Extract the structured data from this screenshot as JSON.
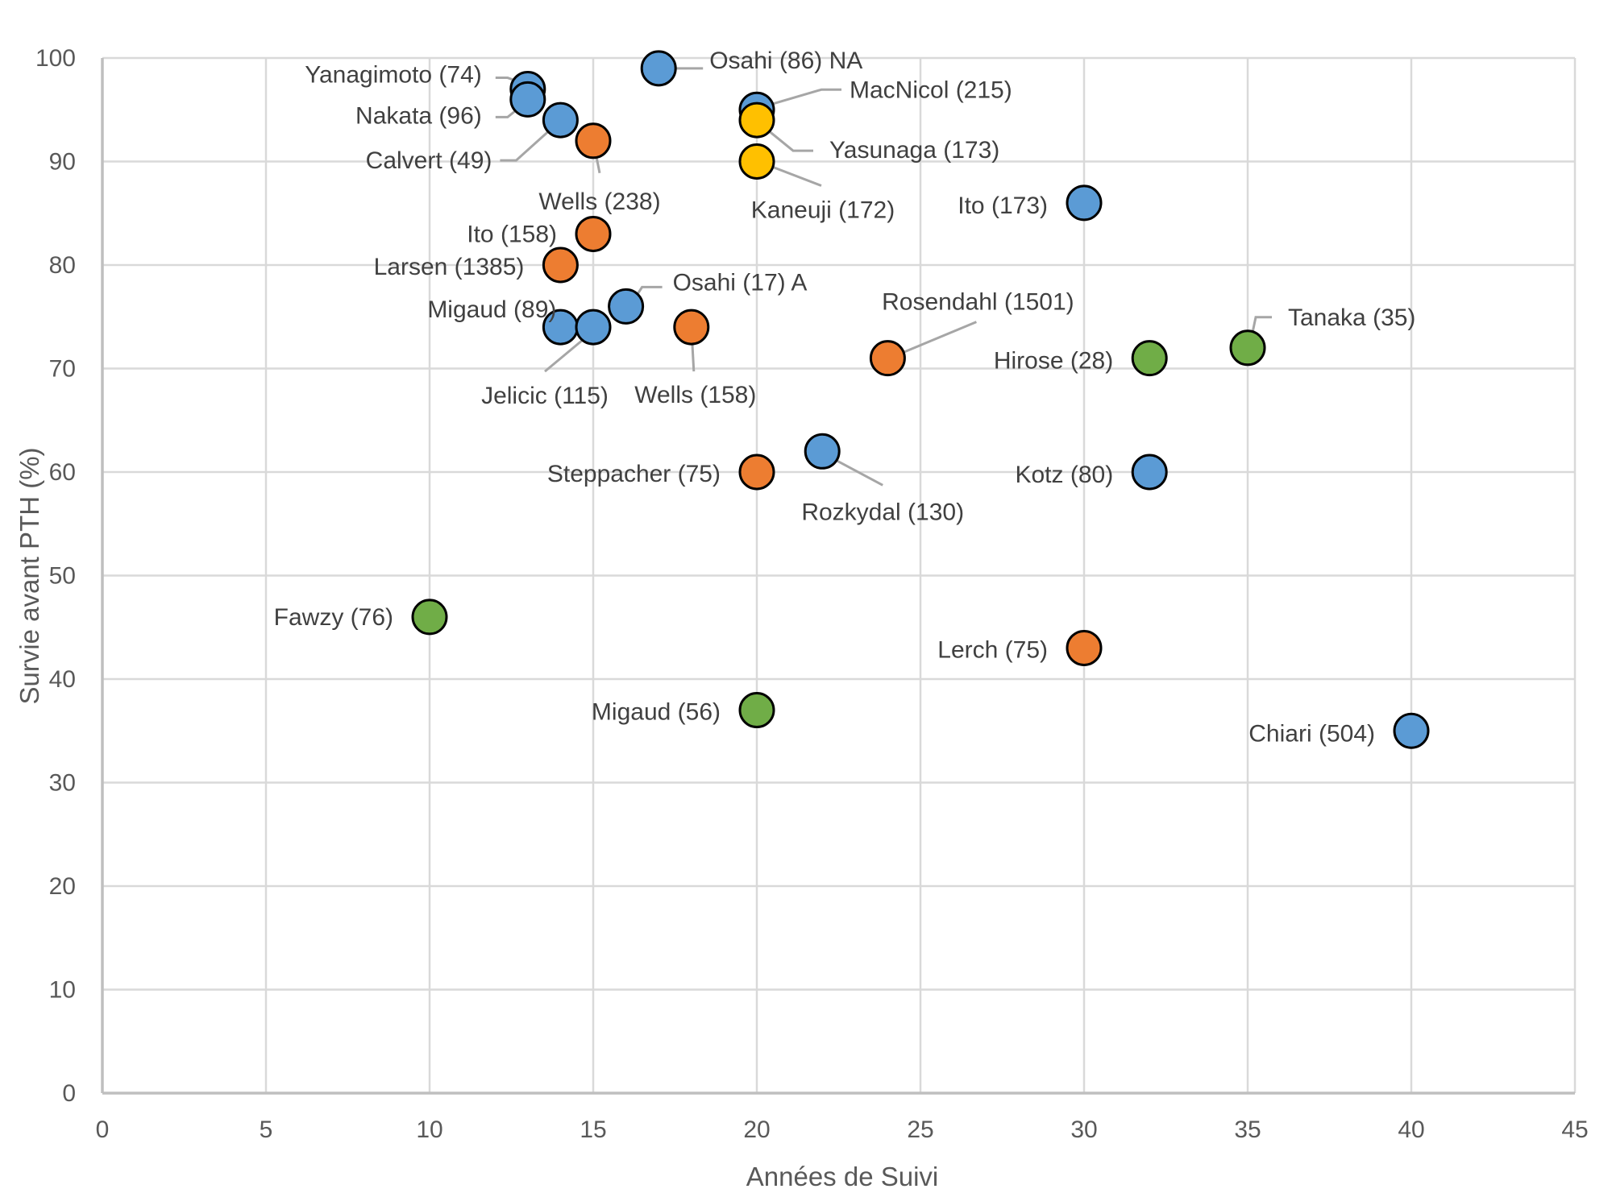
{
  "chart_data": {
    "type": "scatter",
    "title": "",
    "xlabel": "Années de Suivi",
    "ylabel": "Survie avant PTH (%)",
    "xlim": [
      0,
      45
    ],
    "ylim": [
      0,
      100
    ],
    "xticks": [
      0,
      5,
      10,
      15,
      20,
      25,
      30,
      35,
      40,
      45
    ],
    "yticks": [
      0,
      10,
      20,
      30,
      40,
      50,
      60,
      70,
      80,
      90,
      100
    ],
    "grid": true,
    "legend": "none",
    "series": [
      {
        "name": "blue",
        "color": "#5B9BD5",
        "points": [
          {
            "label": "Yanagimoto (74)",
            "x": 13,
            "y": 97
          },
          {
            "label": "Nakata (96)",
            "x": 13,
            "y": 96
          },
          {
            "label": "Calvert (49)",
            "x": 14,
            "y": 94
          },
          {
            "label": "Osahi (86) NA",
            "x": 17,
            "y": 99
          },
          {
            "label": "MacNicol (215)",
            "x": 20,
            "y": 95
          },
          {
            "label": "Ito (173)",
            "x": 30,
            "y": 86
          },
          {
            "label": "Osahi (17) A",
            "x": 16,
            "y": 76
          },
          {
            "label": "Migaud (89)",
            "x": 14,
            "y": 74
          },
          {
            "label": "Jelicic (115)",
            "x": 15,
            "y": 74
          },
          {
            "label": "Rozkydal (130)",
            "x": 22,
            "y": 62
          },
          {
            "label": "Kotz (80)",
            "x": 32,
            "y": 60
          },
          {
            "label": "Chiari (504)",
            "x": 40,
            "y": 35
          }
        ]
      },
      {
        "name": "orange",
        "color": "#ED7D31",
        "points": [
          {
            "label": "Wells (238)",
            "x": 15,
            "y": 92
          },
          {
            "label": "Ito (158)",
            "x": 15,
            "y": 83
          },
          {
            "label": "Larsen (1385)",
            "x": 14,
            "y": 80
          },
          {
            "label": "Wells (158)",
            "x": 18,
            "y": 74
          },
          {
            "label": "Rosendahl (1501)",
            "x": 24,
            "y": 71
          },
          {
            "label": "Steppacher (75)",
            "x": 20,
            "y": 60
          },
          {
            "label": "Lerch (75)",
            "x": 30,
            "y": 43
          }
        ]
      },
      {
        "name": "yellow",
        "color": "#FFC000",
        "points": [
          {
            "label": "Yasunaga (173)",
            "x": 20,
            "y": 94
          },
          {
            "label": "Kaneuji (172)",
            "x": 20,
            "y": 90
          }
        ]
      },
      {
        "name": "green",
        "color": "#70AD47",
        "points": [
          {
            "label": "Tanaka (35)",
            "x": 35,
            "y": 72
          },
          {
            "label": "Hirose (28)",
            "x": 32,
            "y": 71
          },
          {
            "label": "Fawzy (76)",
            "x": 10,
            "y": 46
          },
          {
            "label": "Migaud (56)",
            "x": 20,
            "y": 37
          }
        ]
      }
    ]
  }
}
